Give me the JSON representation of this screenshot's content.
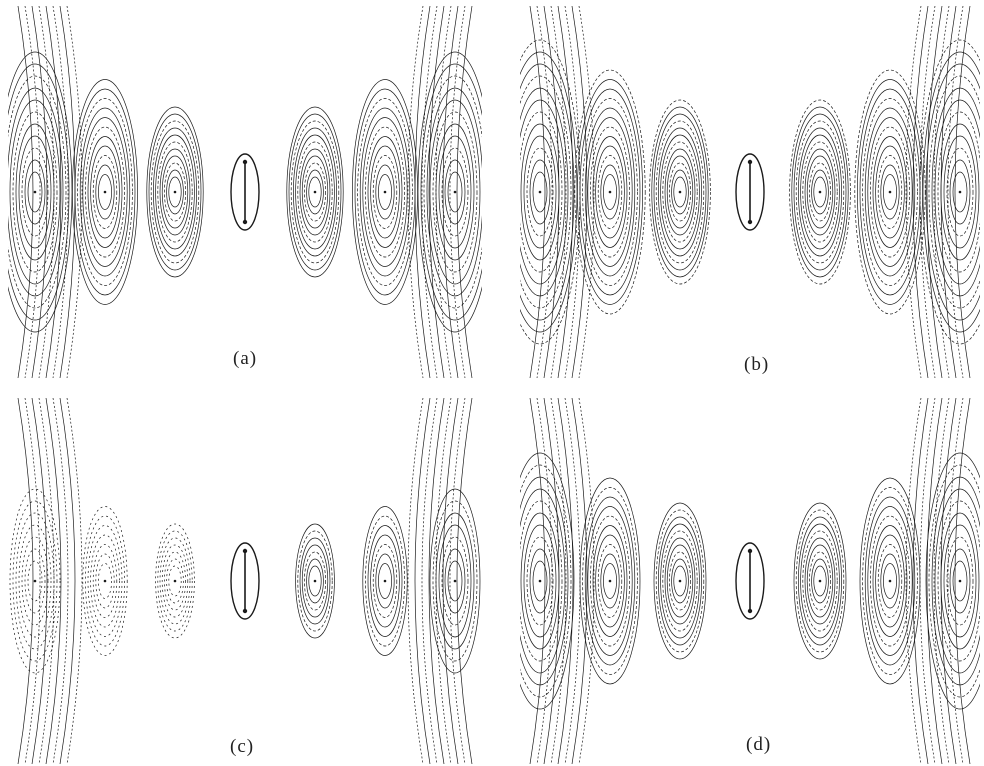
{
  "panels": [
    {
      "id": "a",
      "caption": "(a)",
      "annotation": "",
      "phase": 0.0,
      "density": 0.9
    },
    {
      "id": "b",
      "caption": "(b)",
      "annotation": "",
      "phase": 0.35,
      "density": 1.0
    },
    {
      "id": "c",
      "caption": "(c)",
      "annotation": "",
      "phase": 0.65,
      "density": 0.6
    },
    {
      "id": "d",
      "caption": "(d)",
      "annotation": "",
      "phase": 0.85,
      "density": 0.8
    }
  ],
  "colors": {
    "ink": "#1a1a1a",
    "background": "#ffffff"
  }
}
